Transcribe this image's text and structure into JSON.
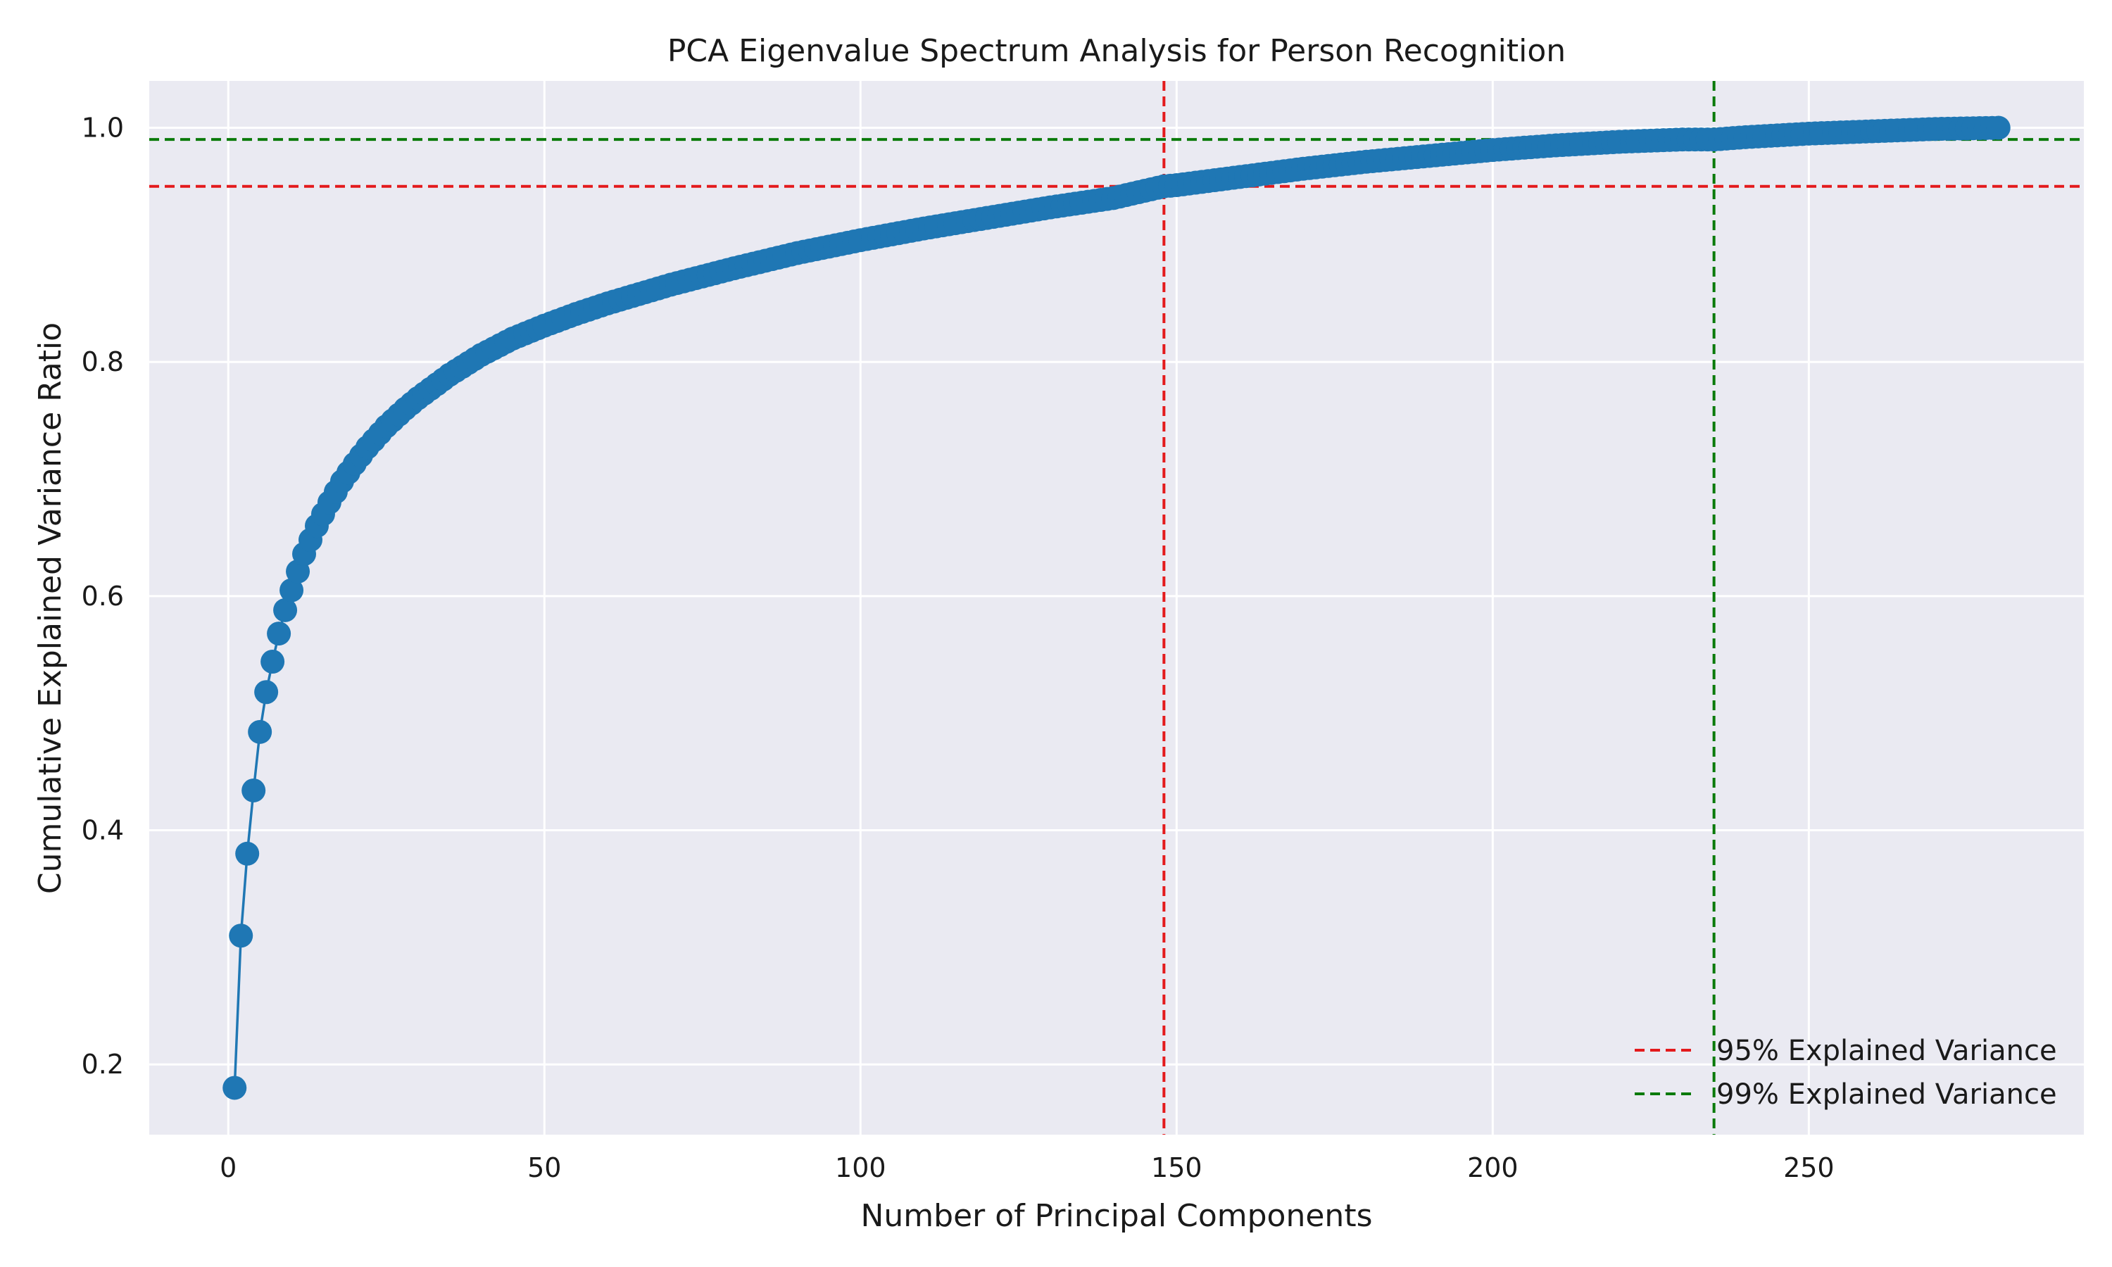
{
  "chart_data": {
    "type": "line",
    "title": "PCA Eigenvalue Spectrum Analysis for Person Recognition",
    "xlabel": "Number of Principal Components",
    "ylabel": "Cumulative Explained Variance Ratio",
    "xlim": [
      -12.5,
      293.5
    ],
    "ylim": [
      0.14,
      1.04
    ],
    "xticks": [
      0,
      50,
      100,
      150,
      200,
      250
    ],
    "xtick_labels": [
      "0",
      "50",
      "100",
      "150",
      "200",
      "250"
    ],
    "yticks": [
      0.2,
      0.4,
      0.6,
      0.8,
      1.0
    ],
    "ytick_labels": [
      "0.2",
      "0.4",
      "0.6",
      "0.8",
      "1.0"
    ],
    "grid": true,
    "background_color": "#eaeaf2",
    "series_color": "#1f77b4",
    "marker": "circle",
    "n_components": 280,
    "x": [
      1,
      2,
      3,
      4,
      5,
      6,
      7,
      8,
      9,
      10,
      11,
      12,
      13,
      14,
      15,
      16,
      18,
      20,
      22,
      25,
      28,
      30,
      35,
      40,
      45,
      50,
      55,
      60,
      70,
      80,
      90,
      100,
      110,
      120,
      130,
      140,
      148,
      150,
      160,
      170,
      180,
      190,
      200,
      210,
      220,
      230,
      235,
      240,
      250,
      260,
      270,
      280
    ],
    "series": [
      {
        "values": [
          0.18,
          0.31,
          0.38,
          0.434,
          0.484,
          0.518,
          0.544,
          0.568,
          0.588,
          0.605,
          0.621,
          0.636,
          0.648,
          0.66,
          0.67,
          0.68,
          0.698,
          0.713,
          0.727,
          0.745,
          0.76,
          0.769,
          0.789,
          0.806,
          0.82,
          0.831,
          0.841,
          0.85,
          0.866,
          0.88,
          0.893,
          0.904,
          0.914,
          0.923,
          0.932,
          0.94,
          0.95,
          0.951,
          0.958,
          0.965,
          0.971,
          0.976,
          0.981,
          0.985,
          0.988,
          0.99,
          0.99,
          0.992,
          0.995,
          0.997,
          0.999,
          1.0
        ]
      }
    ],
    "reference_lines": {
      "horizontal": [
        {
          "y": 0.95,
          "color": "#e31a1c",
          "style": "dashed"
        },
        {
          "y": 0.99,
          "color": "#0a7a0a",
          "style": "dashed"
        }
      ],
      "vertical": [
        {
          "x": 148,
          "color": "#e31a1c",
          "style": "dashed"
        },
        {
          "x": 235,
          "color": "#0a7a0a",
          "style": "dashed"
        }
      ]
    },
    "legend": {
      "placement": "lower right",
      "entries": [
        {
          "label": "95% Explained Variance",
          "color": "#e31a1c",
          "style": "dashed"
        },
        {
          "label": "99% Explained Variance",
          "color": "#0a7a0a",
          "style": "dashed"
        }
      ]
    }
  }
}
